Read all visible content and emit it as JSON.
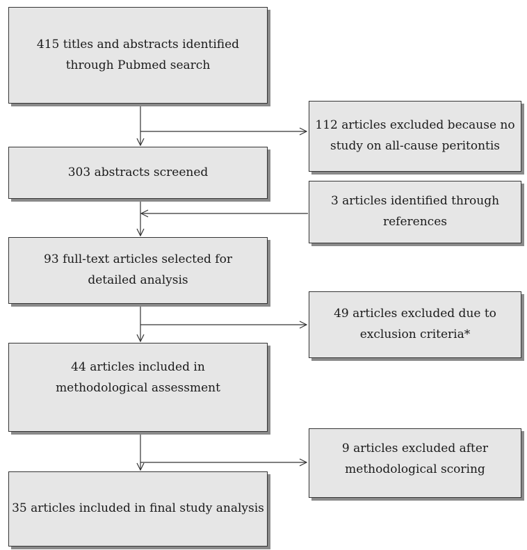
{
  "boxes": {
    "identified": [
      "415 titles and abstracts identified",
      "through Pubmed search"
    ],
    "excluded_no_study": [
      "112 articles excluded because no",
      "study on all-cause peritontis"
    ],
    "screened": [
      "303 abstracts screened"
    ],
    "identified_refs": [
      "3 articles identified through",
      "references"
    ],
    "fulltext": [
      "93 full-text articles selected for",
      "detailed analysis"
    ],
    "excluded_criteria": [
      "49 articles excluded due to",
      "exclusion criteria*"
    ],
    "method_assessment": [
      "44 articles included in",
      "methodological assessment"
    ],
    "excluded_scoring": [
      "9 articles excluded after",
      "methodological scoring"
    ],
    "final": [
      "35 articles included in final study analysis"
    ]
  },
  "colors": {
    "box_fill": "#e6e6e6",
    "box_border": "#333333",
    "box_shadow": "#8a8a8a",
    "arrow": "#333333"
  }
}
